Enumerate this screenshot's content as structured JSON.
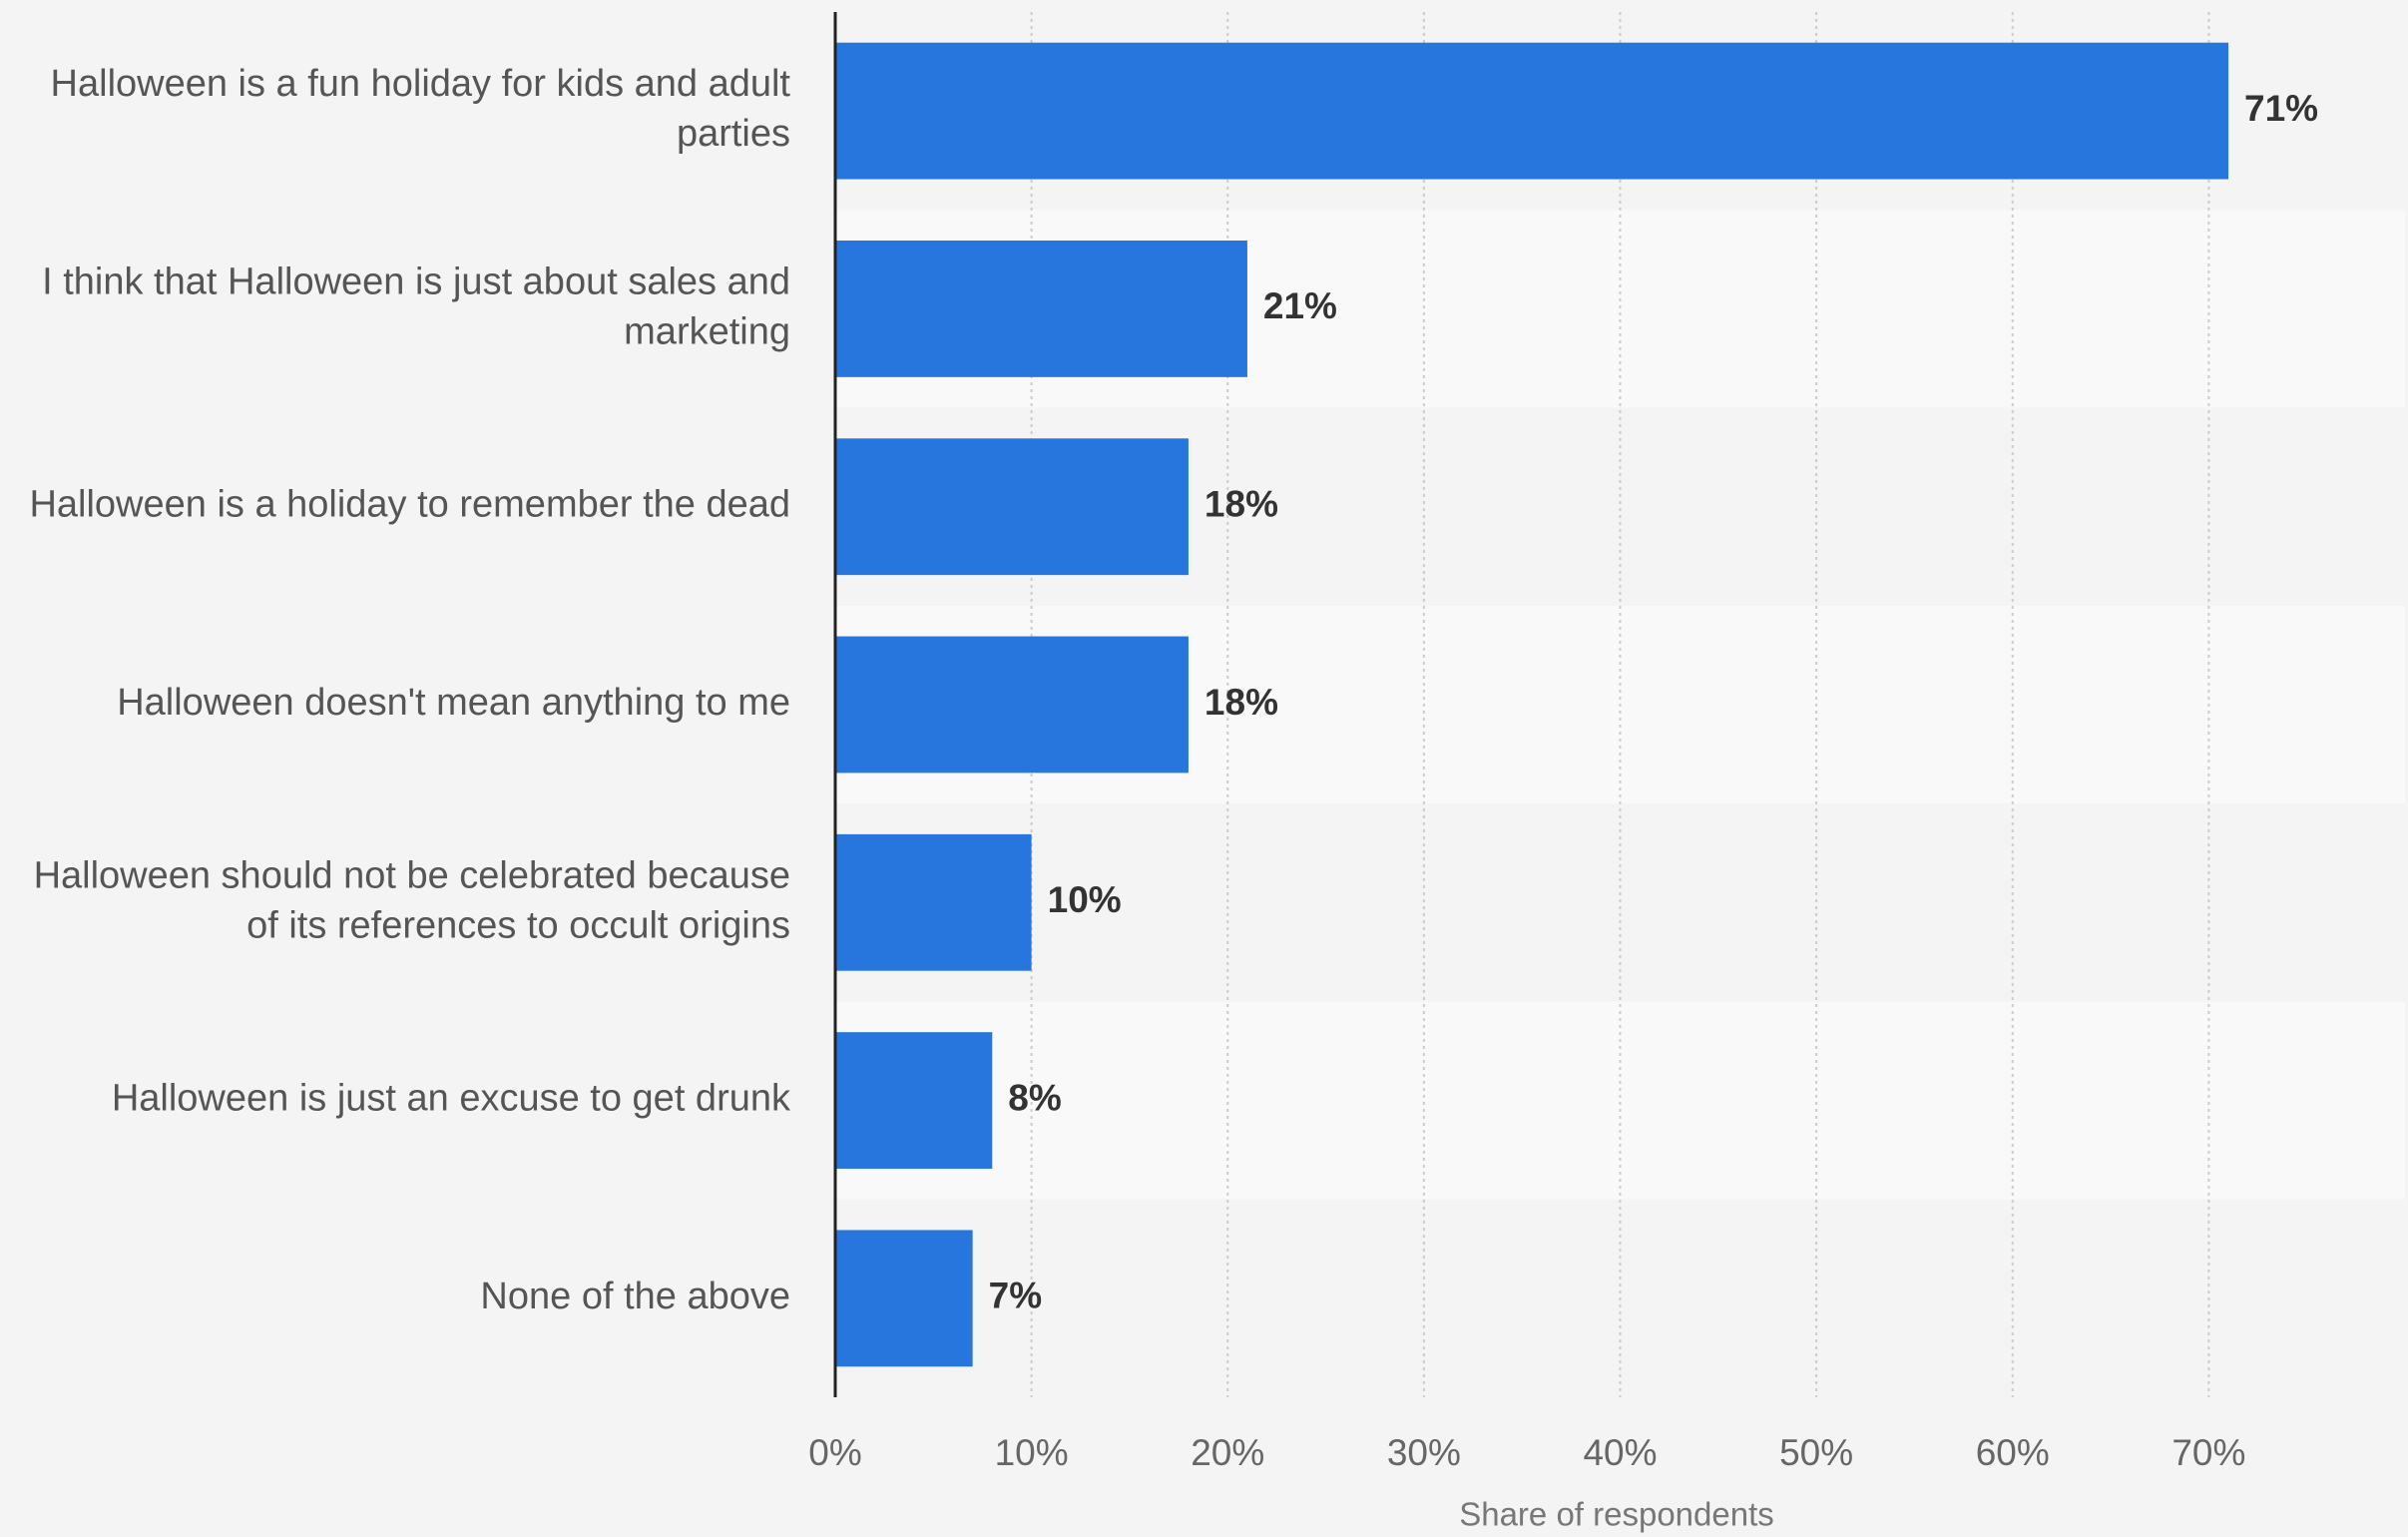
{
  "chart_data": {
    "type": "bar",
    "orientation": "horizontal",
    "categories": [
      "Halloween is a fun holiday for kids and adult parties",
      "I think that Halloween is just about sales and marketing",
      "Halloween is a holiday to remember the dead",
      "Halloween doesn't mean anything to me",
      "Halloween should not be celebrated because of its references to occult origins",
      "Halloween is just an excuse to get drunk",
      "None of the above"
    ],
    "values": [
      71,
      21,
      18,
      18,
      10,
      8,
      7
    ],
    "value_labels": [
      "71%",
      "21%",
      "18%",
      "18%",
      "10%",
      "8%",
      "7%"
    ],
    "color": "#2776dd",
    "xlim": [
      0,
      80
    ],
    "xticks": [
      {
        "value": 0,
        "label": "0%"
      },
      {
        "value": 10,
        "label": "10%"
      },
      {
        "value": 20,
        "label": "20%"
      },
      {
        "value": 30,
        "label": "30%"
      },
      {
        "value": 40,
        "label": "40%"
      },
      {
        "value": 50,
        "label": "50%"
      },
      {
        "value": 60,
        "label": "60%"
      },
      {
        "value": 70,
        "label": "70%"
      }
    ],
    "xlabel": "Share of respondents",
    "grid": true
  }
}
